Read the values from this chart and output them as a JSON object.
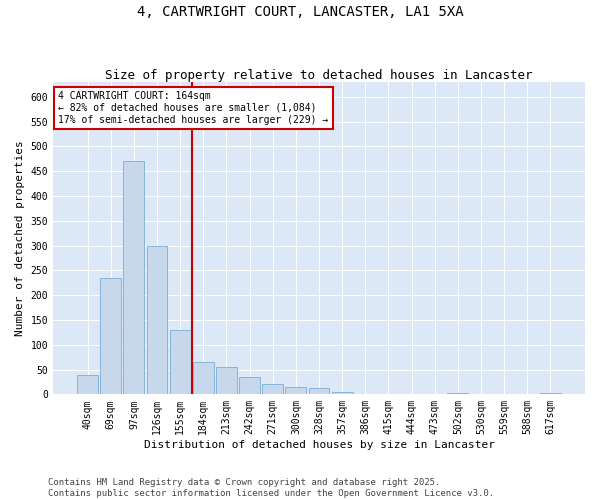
{
  "title": "4, CARTWRIGHT COURT, LANCASTER, LA1 5XA",
  "subtitle": "Size of property relative to detached houses in Lancaster",
  "xlabel": "Distribution of detached houses by size in Lancaster",
  "ylabel": "Number of detached properties",
  "categories": [
    "40sqm",
    "69sqm",
    "97sqm",
    "126sqm",
    "155sqm",
    "184sqm",
    "213sqm",
    "242sqm",
    "271sqm",
    "300sqm",
    "328sqm",
    "357sqm",
    "386sqm",
    "415sqm",
    "444sqm",
    "473sqm",
    "502sqm",
    "530sqm",
    "559sqm",
    "588sqm",
    "617sqm"
  ],
  "values": [
    40,
    235,
    470,
    300,
    130,
    65,
    55,
    35,
    20,
    15,
    13,
    5,
    0,
    0,
    0,
    0,
    3,
    0,
    0,
    0,
    2
  ],
  "bar_color": "#c8d8ec",
  "bar_edge_color": "#7aafd4",
  "background_color": "#dce8f5",
  "vline_color": "#cc0000",
  "vline_pos": 4.5,
  "annotation_text": "4 CARTWRIGHT COURT: 164sqm\n← 82% of detached houses are smaller (1,084)\n17% of semi-detached houses are larger (229) →",
  "annotation_box_color": "white",
  "annotation_box_edge": "#cc0000",
  "ylim": [
    0,
    630
  ],
  "yticks": [
    0,
    50,
    100,
    150,
    200,
    250,
    300,
    350,
    400,
    450,
    500,
    550,
    600
  ],
  "footer_line1": "Contains HM Land Registry data © Crown copyright and database right 2025.",
  "footer_line2": "Contains public sector information licensed under the Open Government Licence v3.0.",
  "title_fontsize": 10,
  "subtitle_fontsize": 9,
  "axis_label_fontsize": 8,
  "tick_fontsize": 7,
  "annotation_fontsize": 7,
  "footer_fontsize": 6.5
}
